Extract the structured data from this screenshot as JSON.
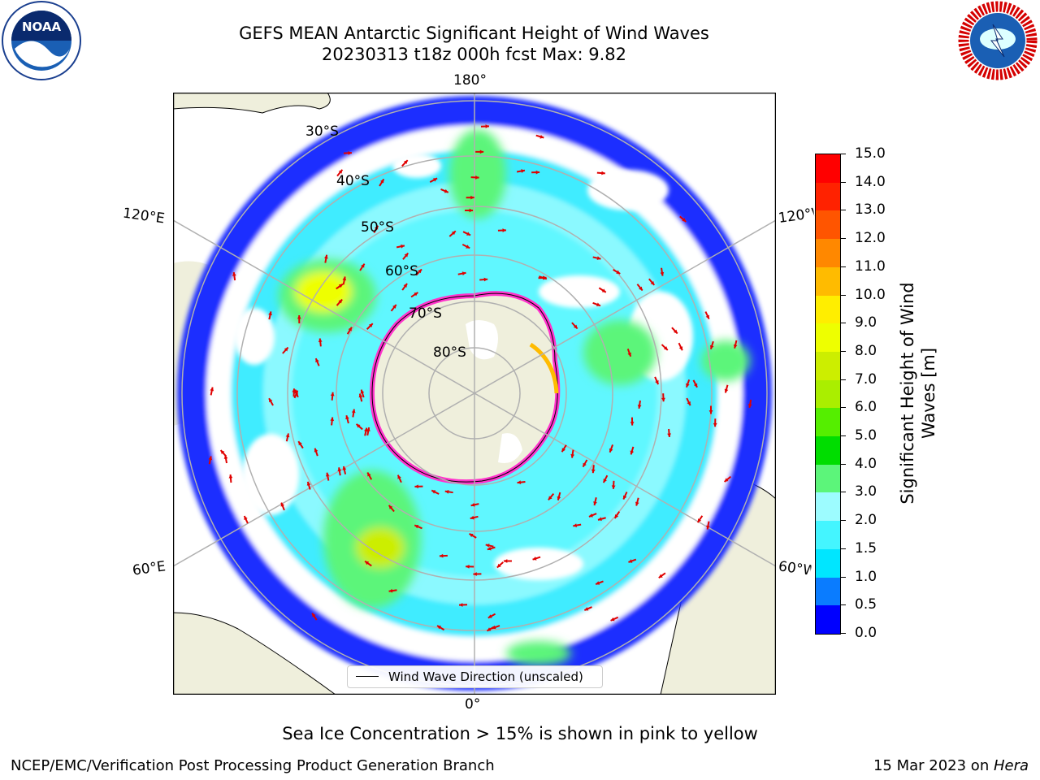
{
  "title": {
    "line1": "GEFS MEAN Antarctic Significant Height of Wind Waves",
    "line2": "20230313 t18z 000h fcst   Max: 9.82"
  },
  "map": {
    "longitude_labels": {
      "top": "180°",
      "bottom": "0°",
      "upper_left": "120°E",
      "upper_right": "120°W",
      "lower_left": "60°E",
      "lower_right": "60°W"
    },
    "latitude_labels": [
      "30°S",
      "40°S",
      "50°S",
      "60°S",
      "70°S",
      "80°S"
    ],
    "legend": "Wind Wave Direction (unscaled)"
  },
  "colorbar": {
    "label_line1": "Significant Height of Wind",
    "label_line2": "Waves [m]",
    "ticks": [
      "0.0",
      "0.5",
      "1.0",
      "1.5",
      "2.0",
      "3.0",
      "4.0",
      "5.0",
      "6.0",
      "7.0",
      "8.0",
      "9.0",
      "10.0",
      "11.0",
      "12.0",
      "13.0",
      "14.0",
      "15.0"
    ],
    "colors": [
      "#0000ff",
      "#0a7cff",
      "#00e6ff",
      "#44f5ff",
      "#9dfcff",
      "#5cf57a",
      "#00dd00",
      "#55ee00",
      "#aaee00",
      "#ccee00",
      "#eeff00",
      "#ffee00",
      "#ffbb00",
      "#ff8800",
      "#ff5500",
      "#ff2200",
      "#ff0000"
    ]
  },
  "logos": {
    "noaa": "NOAA",
    "nws": "NATIONAL WEATHER SERVICE"
  },
  "caption": "Sea Ice Concentration > 15% is shown in pink to yellow",
  "footer": {
    "left": "NCEP/EMC/Verification Post Processing Product Generation Branch",
    "right_date": "15 Mar 2023 on ",
    "right_italic": "Hera"
  }
}
